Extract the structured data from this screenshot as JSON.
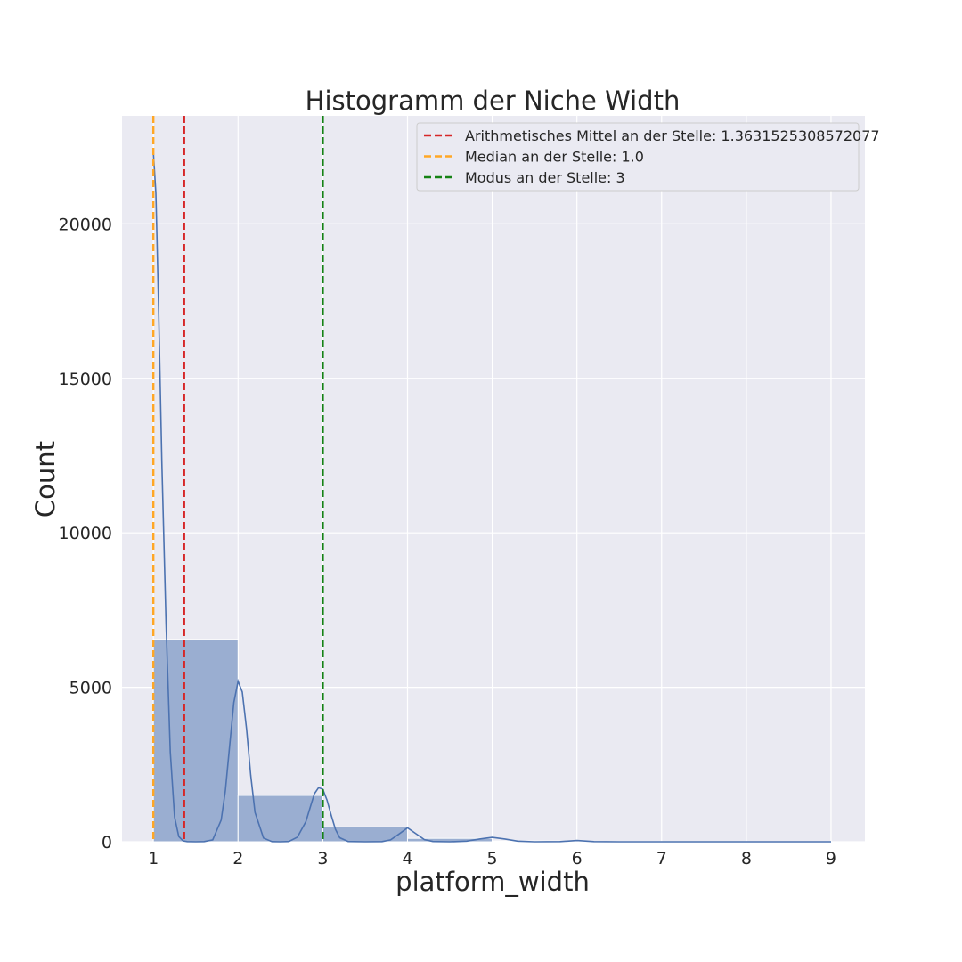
{
  "chart_data": {
    "type": "bar",
    "title": "Histogramm der Niche Width",
    "xlabel": "platform_width",
    "ylabel": "Count",
    "xlim": [
      0.63,
      9.4
    ],
    "ylim": [
      0,
      23500
    ],
    "grid": true,
    "legend_position": "top-right",
    "x_ticks": [
      "1",
      "2",
      "3",
      "4",
      "5",
      "6",
      "7",
      "8",
      "9"
    ],
    "y_ticks": [
      "0",
      "5000",
      "10000",
      "15000",
      "20000"
    ],
    "bins": [
      {
        "start": 1,
        "end": 2,
        "count": 6550
      },
      {
        "start": 2,
        "end": 3,
        "count": 1500
      },
      {
        "start": 3,
        "end": 4,
        "count": 480
      },
      {
        "start": 4,
        "end": 5,
        "count": 110
      },
      {
        "start": 5,
        "end": 6,
        "count": 25
      },
      {
        "start": 6,
        "end": 7,
        "count": 12
      },
      {
        "start": 7,
        "end": 8,
        "count": 6
      },
      {
        "start": 8,
        "end": 9,
        "count": 4
      }
    ],
    "kde": {
      "x": [
        1.0,
        1.03,
        1.06,
        1.1,
        1.15,
        1.2,
        1.25,
        1.3,
        1.35,
        1.4,
        1.5,
        1.6,
        1.7,
        1.8,
        1.85,
        1.9,
        1.95,
        2.0,
        2.05,
        2.1,
        2.15,
        2.2,
        2.3,
        2.4,
        2.5,
        2.6,
        2.7,
        2.8,
        2.85,
        2.9,
        2.95,
        3.0,
        3.05,
        3.1,
        3.15,
        3.2,
        3.3,
        3.5,
        3.7,
        3.8,
        3.9,
        4.0,
        4.1,
        4.2,
        4.3,
        4.5,
        4.7,
        4.85,
        5.0,
        5.15,
        5.3,
        5.5,
        5.8,
        6.0,
        6.2,
        6.5,
        7.0,
        7.5,
        8.0,
        8.5,
        9.0
      ],
      "y": [
        22300,
        21000,
        17500,
        12300,
        7000,
        2900,
        800,
        170,
        30,
        5,
        0,
        5,
        60,
        700,
        1650,
        3100,
        4500,
        5200,
        4850,
        3650,
        2150,
        950,
        120,
        5,
        0,
        10,
        150,
        650,
        1100,
        1550,
        1750,
        1700,
        1350,
        850,
        400,
        130,
        10,
        0,
        5,
        60,
        250,
        450,
        260,
        70,
        10,
        0,
        20,
        90,
        140,
        90,
        20,
        0,
        5,
        40,
        5,
        0,
        0,
        0,
        0,
        0,
        0
      ]
    },
    "vlines": [
      {
        "name": "Arithmetisches Mittel an der Stelle: 1.3631525308572077",
        "x": 1.3631525308572077,
        "color": "#d62728"
      },
      {
        "name": "Median an der Stelle: 1.0",
        "x": 1.0,
        "color": "#ffa726"
      },
      {
        "name": "Modus an der Stelle: 3",
        "x": 3,
        "color": "#158215"
      }
    ],
    "colors": {
      "bar_fill": "#9aaed1",
      "bar_stroke": "#ffffff",
      "kde_line": "#4c72b0",
      "plot_background": "#eaeaf2",
      "grid": "#ffffff"
    }
  }
}
